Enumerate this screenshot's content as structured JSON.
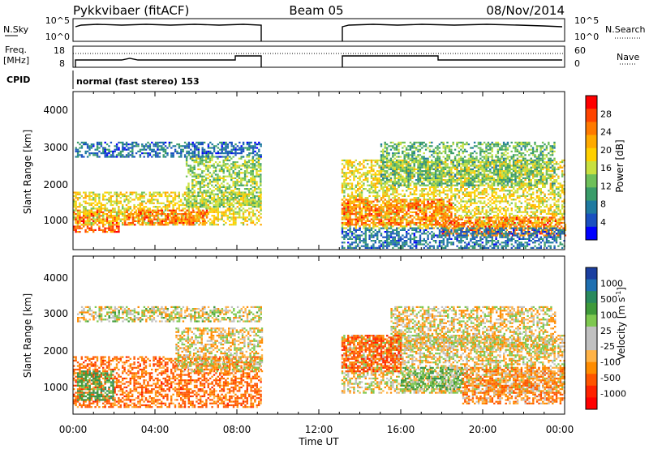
{
  "header": {
    "radar": "Pykkvibaer (fitACF)",
    "beam": "Beam 05",
    "date": "08/Nov/2014"
  },
  "top_panel": {
    "left_label": "N.Sky",
    "right_label": "N.Search",
    "left_ticks": [
      "10^5",
      "10^0"
    ],
    "right_ticks": [
      "10^5",
      "10^0"
    ]
  },
  "freq_panel": {
    "left_label_1": "Freq.",
    "left_label_2": "[MHz]",
    "right_label": "Nave",
    "left_ticks": [
      "18",
      "8"
    ],
    "right_ticks": [
      "60",
      "0"
    ]
  },
  "cpid": {
    "label": "CPID",
    "value": "normal (fast stereo) 153"
  },
  "power_panel": {
    "ylabel": "Slant Range [km]",
    "yticks": [
      "4000",
      "3000",
      "2000",
      "1000"
    ],
    "cbar_label": "Power [dB]",
    "cbar_ticks": [
      "28",
      "24",
      "20",
      "16",
      "12",
      "8",
      "4"
    ],
    "cbar_colors": [
      "#ff0000",
      "#ff4400",
      "#ff7a00",
      "#ffaa00",
      "#ffd000",
      "#c8e040",
      "#6fc05a",
      "#3a9c6a",
      "#1f7aa0",
      "#1a50c0",
      "#0000ff"
    ]
  },
  "velocity_panel": {
    "ylabel": "Slant Range [km]",
    "yticks": [
      "4000",
      "3000",
      "2000",
      "1000"
    ],
    "cbar_label": "Velocity [m s",
    "cbar_label_sup": "-1",
    "cbar_label_end": "]",
    "cbar_ticks": [
      "1000",
      "500",
      "100",
      "25",
      "-25",
      "-100",
      "-500",
      "-1000"
    ],
    "cbar_colors": [
      "#1b3fa0",
      "#1f6fb0",
      "#2a8a5e",
      "#3f9a3a",
      "#7ec850",
      "#c0c0c0",
      "#c0c0c0",
      "#ffb347",
      "#ff8c00",
      "#ff5500",
      "#ff2200",
      "#ff0000"
    ]
  },
  "time_axis": {
    "xlabel": "Time UT",
    "ticks": [
      "00:00",
      "04:00",
      "08:00",
      "12:00",
      "16:00",
      "20:00",
      "00:00"
    ]
  },
  "chart_data": {
    "type": "heatmap",
    "title": "Pykkvibaer (fitACF)  Beam 05  08/Nov/2014",
    "xlabel": "Time UT",
    "ylabel": "Slant Range [km]",
    "xlim_hours": [
      0,
      24
    ],
    "ylim_km": [
      180,
      4600
    ],
    "data_gaps_hours": [
      [
        9.25,
        13.05
      ]
    ],
    "power_patches": [
      {
        "t0": 0.0,
        "t1": 2.2,
        "r0": 700,
        "r1": 1300,
        "db": 28
      },
      {
        "t0": 0.0,
        "t1": 9.2,
        "r0": 900,
        "r1": 1800,
        "db": 18
      },
      {
        "t0": 2.5,
        "t1": 6.5,
        "r0": 900,
        "r1": 1300,
        "db": 26
      },
      {
        "t0": 5.5,
        "t1": 9.2,
        "r0": 1400,
        "r1": 2800,
        "db": 14
      },
      {
        "t0": 0.1,
        "t1": 9.2,
        "r0": 2800,
        "r1": 3200,
        "db": 6
      },
      {
        "t0": 13.1,
        "t1": 24.0,
        "r0": 800,
        "r1": 2700,
        "db": 18
      },
      {
        "t0": 13.1,
        "t1": 18.5,
        "r0": 900,
        "r1": 1600,
        "db": 26
      },
      {
        "t0": 18.0,
        "t1": 24.0,
        "r0": 600,
        "r1": 1100,
        "db": 26
      },
      {
        "t0": 15.0,
        "t1": 23.5,
        "r0": 2000,
        "r1": 3200,
        "db": 12
      },
      {
        "t0": 13.1,
        "t1": 24.0,
        "r0": 250,
        "r1": 800,
        "db": 6
      }
    ],
    "velocity_patches": [
      {
        "t0": 0.0,
        "t1": 9.2,
        "r0": 400,
        "r1": 1800,
        "v": -300
      },
      {
        "t0": 0.2,
        "t1": 2.0,
        "r0": 600,
        "r1": 1400,
        "v": 400
      },
      {
        "t0": 5.0,
        "t1": 9.2,
        "r0": 1400,
        "r1": 2600,
        "v": 0
      },
      {
        "t0": 0.2,
        "t1": 9.2,
        "r0": 2800,
        "r1": 3200,
        "v": 50
      },
      {
        "t0": 13.1,
        "t1": 24.0,
        "r0": 800,
        "r1": 2400,
        "v": 0
      },
      {
        "t0": 15.5,
        "t1": 23.5,
        "r0": 2000,
        "r1": 3200,
        "v": 0
      },
      {
        "t0": 13.1,
        "t1": 16.0,
        "r0": 1400,
        "r1": 2400,
        "v": -400
      },
      {
        "t0": 16.0,
        "t1": 19.0,
        "r0": 900,
        "r1": 1500,
        "v": 300
      },
      {
        "t0": 19.0,
        "t1": 24.0,
        "r0": 500,
        "r1": 1500,
        "v": -200
      }
    ]
  }
}
